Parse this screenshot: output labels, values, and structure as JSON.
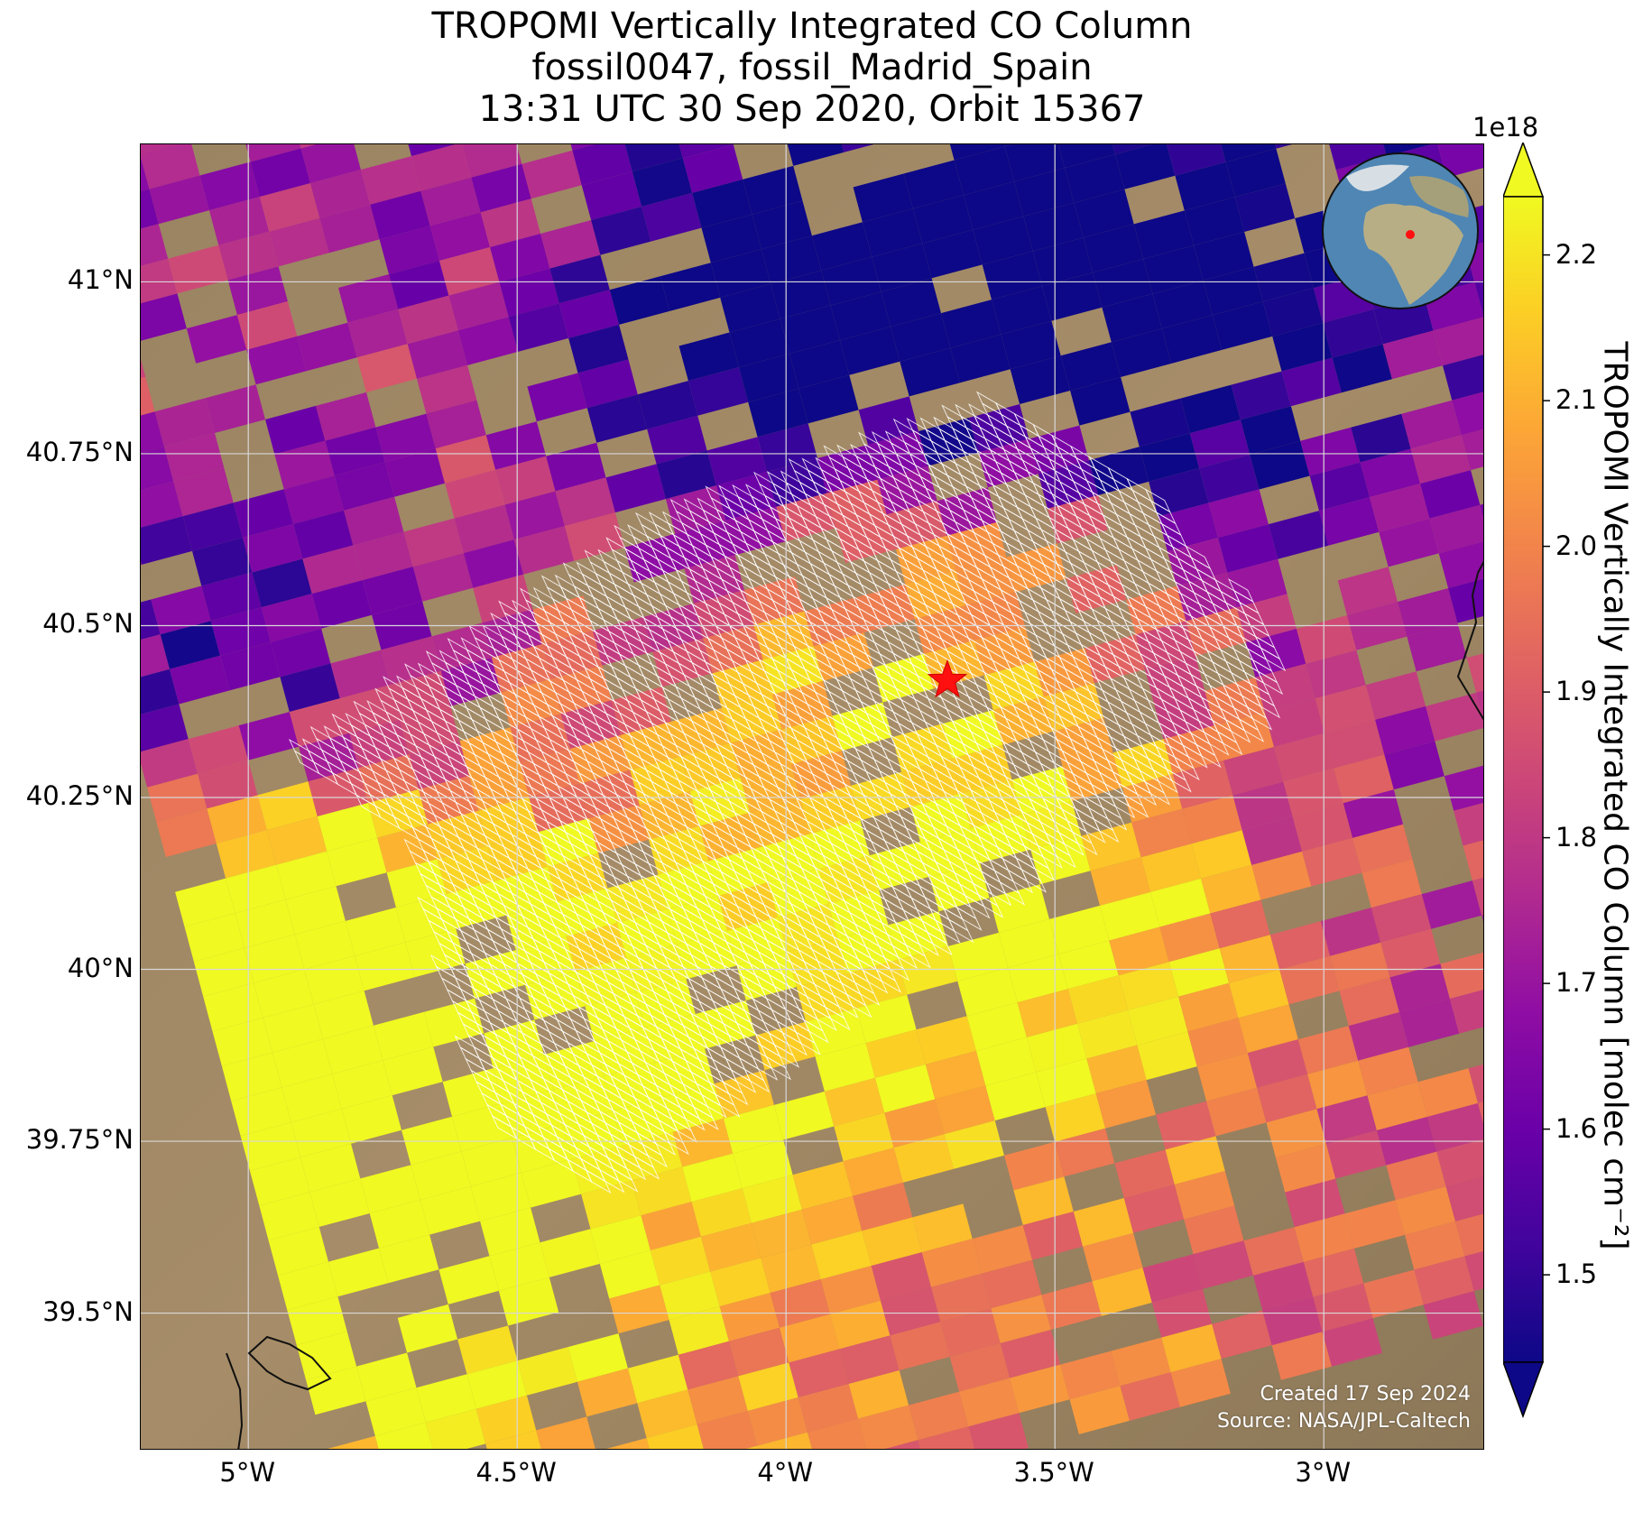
{
  "title": {
    "line1": "TROPOMI Vertically Integrated CO Column",
    "line2": "fossil0047, fossil_Madrid_Spain",
    "line3": "13:31 UTC 30 Sep 2020, Orbit 15367"
  },
  "map": {
    "lon_range": [
      -5.2,
      -2.7
    ],
    "lat_range": [
      39.3,
      41.2
    ],
    "lat_ticks": [
      "41°N",
      "40.75°N",
      "40.5°N",
      "40.25°N",
      "40°N",
      "39.75°N",
      "39.5°N"
    ],
    "lon_ticks": [
      "5°W",
      "4.5°W",
      "4°W",
      "3.5°W",
      "3°W"
    ],
    "target_marker": {
      "lon": -3.7,
      "lat": 40.42,
      "color": "#ff1010"
    },
    "grid_color": "#d8d8d8",
    "mesh_color": "#ffffff"
  },
  "credits": {
    "created": "Created 17 Sep 2024",
    "source": "Source: NASA/JPL-Caltech"
  },
  "colorbar": {
    "colormap": "plasma",
    "exponent": "1e18",
    "vmin": 1.44,
    "vmax": 2.24,
    "ticks": [
      "1.5",
      "1.6",
      "1.7",
      "1.8",
      "1.9",
      "2.0",
      "2.1",
      "2.2"
    ],
    "tick_values": [
      1.5,
      1.6,
      1.7,
      1.8,
      1.9,
      2.0,
      2.1,
      2.2
    ],
    "extend": "both",
    "label": "TROPOMI Vertically Integrated CO Column [molec cm⁻²]"
  },
  "inset_globe": {
    "marker_color": "#ff1010",
    "ocean_color": "#4f86b4",
    "land_color": "#b7ae86"
  }
}
